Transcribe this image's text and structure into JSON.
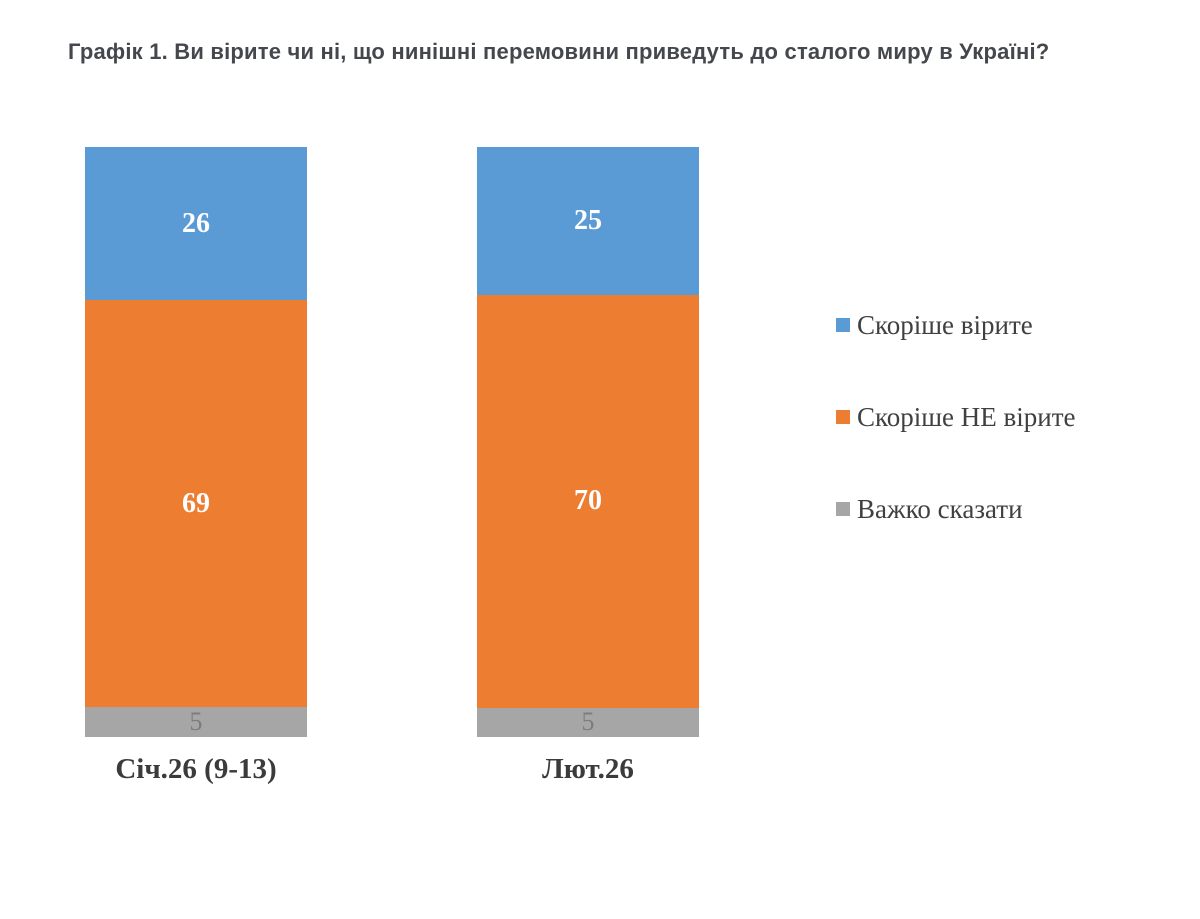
{
  "title": "Графік 1. Ви вірите чи ні, що нинішні перемовини приведуть до сталого миру в Україні?",
  "chart_data": {
    "type": "bar",
    "stacked": true,
    "orientation": "vertical",
    "categories": [
      "Січ.26 (9-13)",
      "Лют.26"
    ],
    "series": [
      {
        "name": "Скоріше вірите",
        "color": "#5B9BD5",
        "label_color": "#FFFFFF",
        "values": [
          26,
          25
        ]
      },
      {
        "name": "Скоріше НЕ вірите",
        "color": "#ED7D31",
        "label_color": "#FFFFFF",
        "values": [
          69,
          70
        ]
      },
      {
        "name": "Важко сказати",
        "color": "#A6A6A6",
        "label_color": "#7D7D7D",
        "values": [
          5,
          5
        ]
      }
    ],
    "ylim": [
      0,
      100
    ],
    "grid": false,
    "data_labels": true,
    "legend_position": "right"
  }
}
